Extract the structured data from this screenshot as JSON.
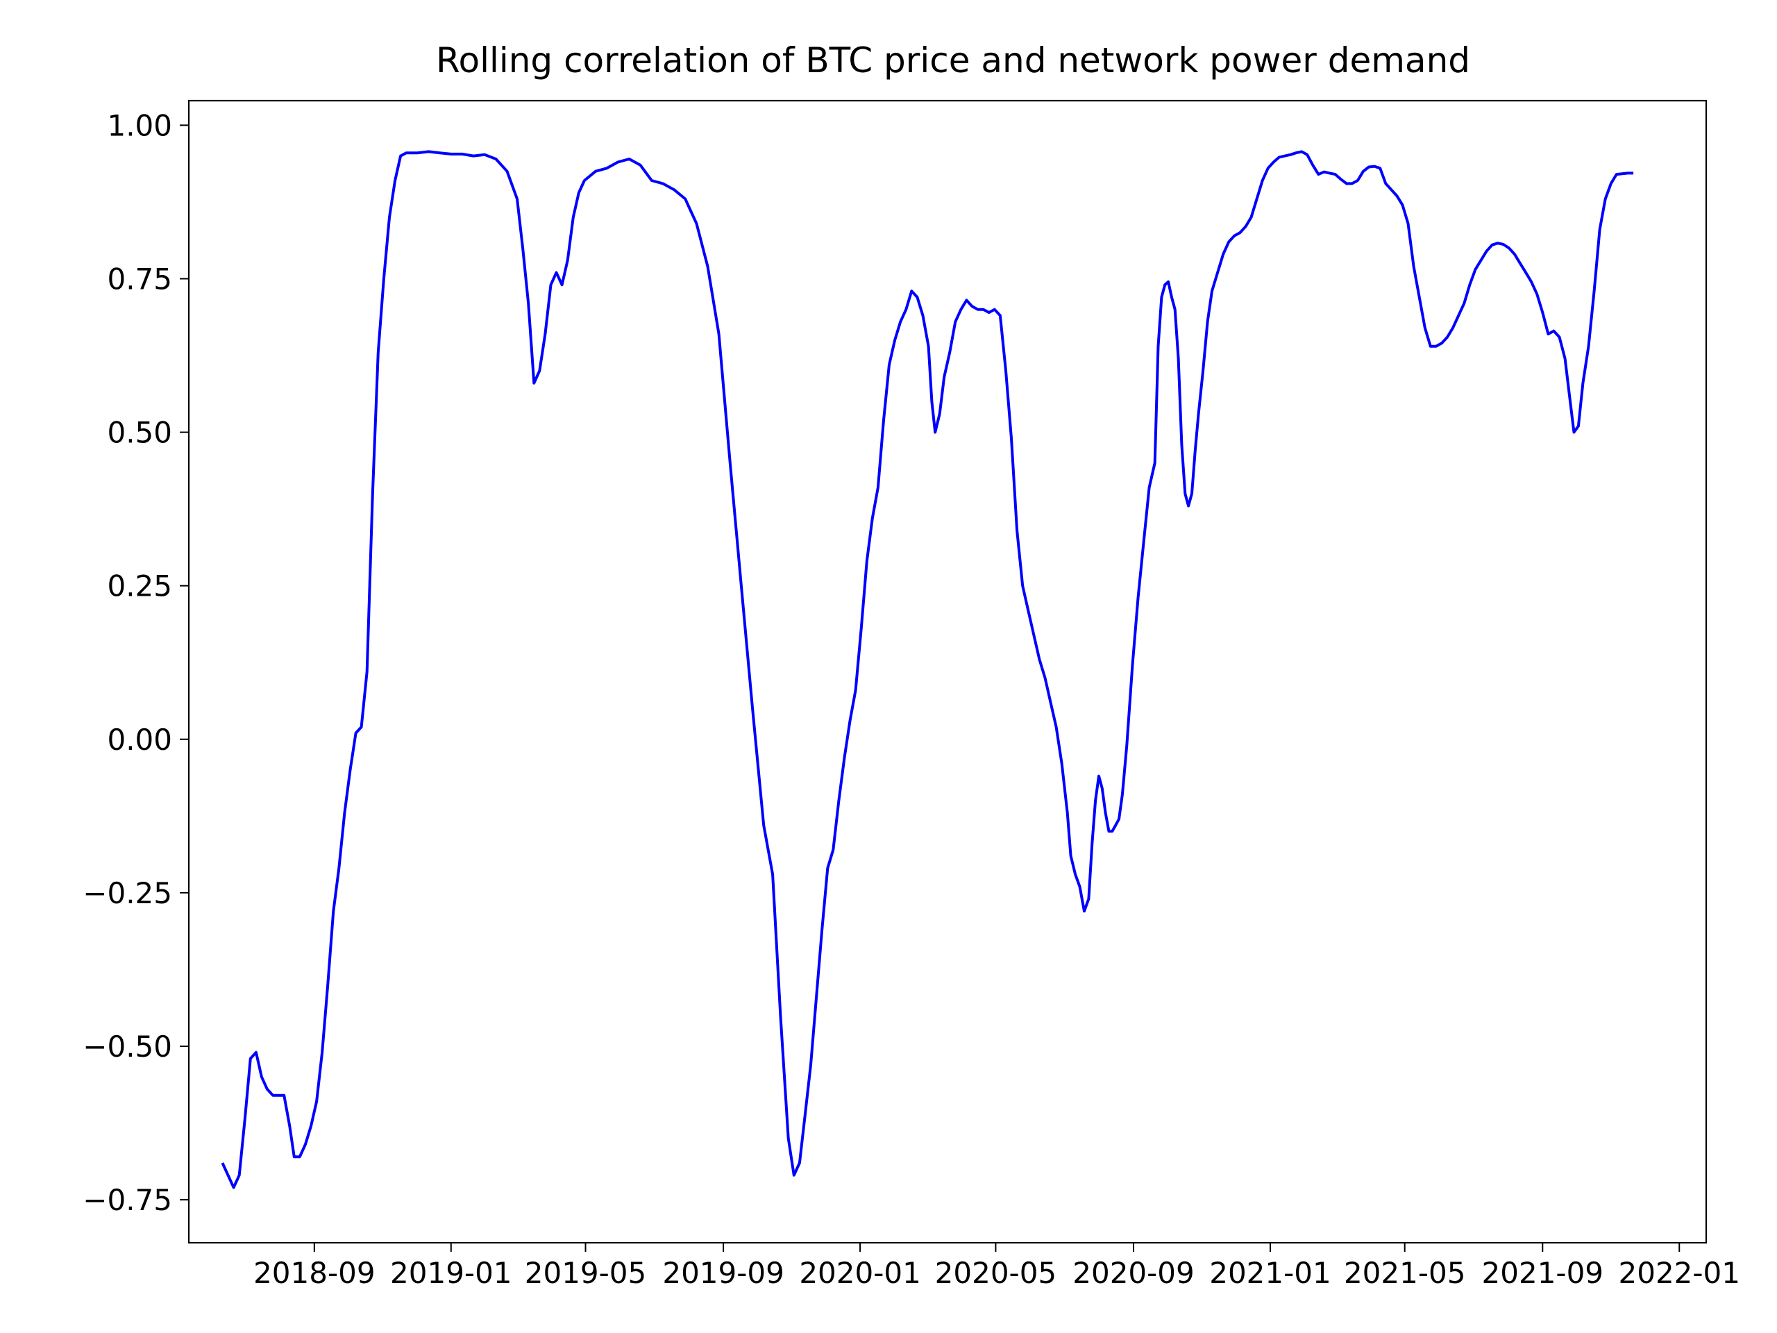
{
  "chart_data": {
    "type": "line",
    "title": "Rolling correlation of BTC price and network power demand",
    "xlabel": "",
    "ylabel": "",
    "x_axis": {
      "type": "date",
      "lim": [
        "2018-05-12",
        "2022-01-25"
      ],
      "ticks": [
        "2018-09-01",
        "2019-01-01",
        "2019-05-01",
        "2019-09-01",
        "2020-01-01",
        "2020-05-01",
        "2020-09-01",
        "2021-01-01",
        "2021-05-01",
        "2021-09-01",
        "2022-01-01"
      ],
      "tick_labels": [
        "2018-09",
        "2019-01",
        "2019-05",
        "2019-09",
        "2020-01",
        "2020-05",
        "2020-09",
        "2021-01",
        "2021-05",
        "2021-09",
        "2022-01"
      ]
    },
    "y_axis": {
      "lim": [
        -0.82,
        1.04
      ],
      "ticks": [
        -0.75,
        -0.5,
        -0.25,
        0.0,
        0.25,
        0.5,
        0.75,
        1.0
      ],
      "tick_labels": [
        "−0.75",
        "−0.50",
        "−0.25",
        "0.00",
        "0.25",
        "0.50",
        "0.75",
        "1.00"
      ]
    },
    "grid": false,
    "legend": "none",
    "series": [
      {
        "color": "#0000ff",
        "points": [
          [
            "2018-06-11",
            -0.69
          ],
          [
            "2018-06-16",
            -0.71
          ],
          [
            "2018-06-21",
            -0.73
          ],
          [
            "2018-06-26",
            -0.71
          ],
          [
            "2018-07-01",
            -0.62
          ],
          [
            "2018-07-06",
            -0.52
          ],
          [
            "2018-07-11",
            -0.51
          ],
          [
            "2018-07-16",
            -0.55
          ],
          [
            "2018-07-21",
            -0.57
          ],
          [
            "2018-07-26",
            -0.58
          ],
          [
            "2018-07-31",
            -0.58
          ],
          [
            "2018-08-05",
            -0.58
          ],
          [
            "2018-08-10",
            -0.63
          ],
          [
            "2018-08-14",
            -0.68
          ],
          [
            "2018-08-19",
            -0.68
          ],
          [
            "2018-08-24",
            -0.66
          ],
          [
            "2018-08-29",
            -0.63
          ],
          [
            "2018-09-03",
            -0.59
          ],
          [
            "2018-09-08",
            -0.51
          ],
          [
            "2018-09-13",
            -0.4
          ],
          [
            "2018-09-18",
            -0.28
          ],
          [
            "2018-09-23",
            -0.21
          ],
          [
            "2018-09-28",
            -0.12
          ],
          [
            "2018-10-03",
            -0.05
          ],
          [
            "2018-10-08",
            0.01
          ],
          [
            "2018-10-13",
            0.02
          ],
          [
            "2018-10-18",
            0.11
          ],
          [
            "2018-10-23",
            0.4
          ],
          [
            "2018-10-28",
            0.63
          ],
          [
            "2018-11-02",
            0.75
          ],
          [
            "2018-11-07",
            0.85
          ],
          [
            "2018-11-12",
            0.91
          ],
          [
            "2018-11-17",
            0.95
          ],
          [
            "2018-11-22",
            0.955
          ],
          [
            "2018-12-02",
            0.955
          ],
          [
            "2018-12-12",
            0.957
          ],
          [
            "2018-12-22",
            0.955
          ],
          [
            "2019-01-01",
            0.953
          ],
          [
            "2019-01-11",
            0.953
          ],
          [
            "2019-01-21",
            0.95
          ],
          [
            "2019-01-31",
            0.952
          ],
          [
            "2019-02-10",
            0.945
          ],
          [
            "2019-02-20",
            0.925
          ],
          [
            "2019-03-01",
            0.88
          ],
          [
            "2019-03-06",
            0.8
          ],
          [
            "2019-03-11",
            0.71
          ],
          [
            "2019-03-16",
            0.58
          ],
          [
            "2019-03-21",
            0.6
          ],
          [
            "2019-03-26",
            0.66
          ],
          [
            "2019-03-31",
            0.74
          ],
          [
            "2019-04-05",
            0.76
          ],
          [
            "2019-04-10",
            0.74
          ],
          [
            "2019-04-15",
            0.78
          ],
          [
            "2019-04-20",
            0.85
          ],
          [
            "2019-04-25",
            0.89
          ],
          [
            "2019-04-30",
            0.91
          ],
          [
            "2019-05-10",
            0.925
          ],
          [
            "2019-05-20",
            0.93
          ],
          [
            "2019-05-30",
            0.94
          ],
          [
            "2019-06-09",
            0.945
          ],
          [
            "2019-06-19",
            0.935
          ],
          [
            "2019-06-29",
            0.91
          ],
          [
            "2019-07-09",
            0.905
          ],
          [
            "2019-07-19",
            0.895
          ],
          [
            "2019-07-29",
            0.88
          ],
          [
            "2019-08-08",
            0.84
          ],
          [
            "2019-08-18",
            0.77
          ],
          [
            "2019-08-28",
            0.66
          ],
          [
            "2019-09-07",
            0.45
          ],
          [
            "2019-09-17",
            0.25
          ],
          [
            "2019-09-27",
            0.05
          ],
          [
            "2019-10-07",
            -0.14
          ],
          [
            "2019-10-15",
            -0.22
          ],
          [
            "2019-10-22",
            -0.45
          ],
          [
            "2019-10-29",
            -0.65
          ],
          [
            "2019-11-03",
            -0.71
          ],
          [
            "2019-11-08",
            -0.69
          ],
          [
            "2019-11-13",
            -0.61
          ],
          [
            "2019-11-18",
            -0.53
          ],
          [
            "2019-11-23",
            -0.42
          ],
          [
            "2019-11-28",
            -0.31
          ],
          [
            "2019-12-03",
            -0.21
          ],
          [
            "2019-12-08",
            -0.18
          ],
          [
            "2019-12-13",
            -0.1
          ],
          [
            "2019-12-18",
            -0.03
          ],
          [
            "2019-12-23",
            0.03
          ],
          [
            "2019-12-28",
            0.08
          ],
          [
            "2020-01-02",
            0.18
          ],
          [
            "2020-01-07",
            0.29
          ],
          [
            "2020-01-12",
            0.36
          ],
          [
            "2020-01-17",
            0.41
          ],
          [
            "2020-01-22",
            0.52
          ],
          [
            "2020-01-27",
            0.61
          ],
          [
            "2020-02-01",
            0.65
          ],
          [
            "2020-02-06",
            0.68
          ],
          [
            "2020-02-11",
            0.7
          ],
          [
            "2020-02-16",
            0.73
          ],
          [
            "2020-02-21",
            0.72
          ],
          [
            "2020-02-26",
            0.69
          ],
          [
            "2020-03-02",
            0.64
          ],
          [
            "2020-03-05",
            0.55
          ],
          [
            "2020-03-08",
            0.5
          ],
          [
            "2020-03-12",
            0.53
          ],
          [
            "2020-03-16",
            0.59
          ],
          [
            "2020-03-21",
            0.63
          ],
          [
            "2020-03-26",
            0.68
          ],
          [
            "2020-03-31",
            0.7
          ],
          [
            "2020-04-05",
            0.715
          ],
          [
            "2020-04-10",
            0.705
          ],
          [
            "2020-04-15",
            0.7
          ],
          [
            "2020-04-20",
            0.7
          ],
          [
            "2020-04-25",
            0.695
          ],
          [
            "2020-04-30",
            0.7
          ],
          [
            "2020-05-05",
            0.69
          ],
          [
            "2020-05-10",
            0.6
          ],
          [
            "2020-05-15",
            0.49
          ],
          [
            "2020-05-20",
            0.34
          ],
          [
            "2020-05-25",
            0.25
          ],
          [
            "2020-05-30",
            0.21
          ],
          [
            "2020-06-04",
            0.17
          ],
          [
            "2020-06-09",
            0.13
          ],
          [
            "2020-06-14",
            0.1
          ],
          [
            "2020-06-19",
            0.06
          ],
          [
            "2020-06-24",
            0.02
          ],
          [
            "2020-06-29",
            -0.04
          ],
          [
            "2020-07-04",
            -0.12
          ],
          [
            "2020-07-07",
            -0.19
          ],
          [
            "2020-07-11",
            -0.22
          ],
          [
            "2020-07-15",
            -0.24
          ],
          [
            "2020-07-19",
            -0.28
          ],
          [
            "2020-07-23",
            -0.26
          ],
          [
            "2020-07-26",
            -0.17
          ],
          [
            "2020-07-29",
            -0.1
          ],
          [
            "2020-08-01",
            -0.06
          ],
          [
            "2020-08-04",
            -0.08
          ],
          [
            "2020-08-07",
            -0.12
          ],
          [
            "2020-08-10",
            -0.15
          ],
          [
            "2020-08-13",
            -0.15
          ],
          [
            "2020-08-16",
            -0.14
          ],
          [
            "2020-08-19",
            -0.13
          ],
          [
            "2020-08-22",
            -0.09
          ],
          [
            "2020-08-26",
            -0.01
          ],
          [
            "2020-08-31",
            0.12
          ],
          [
            "2020-09-05",
            0.23
          ],
          [
            "2020-09-10",
            0.32
          ],
          [
            "2020-09-15",
            0.41
          ],
          [
            "2020-09-20",
            0.45
          ],
          [
            "2020-09-23",
            0.64
          ],
          [
            "2020-09-26",
            0.72
          ],
          [
            "2020-09-29",
            0.74
          ],
          [
            "2020-10-02",
            0.745
          ],
          [
            "2020-10-05",
            0.72
          ],
          [
            "2020-10-08",
            0.7
          ],
          [
            "2020-10-11",
            0.62
          ],
          [
            "2020-10-14",
            0.48
          ],
          [
            "2020-10-17",
            0.4
          ],
          [
            "2020-10-20",
            0.38
          ],
          [
            "2020-10-23",
            0.4
          ],
          [
            "2020-10-26",
            0.47
          ],
          [
            "2020-10-29",
            0.53
          ],
          [
            "2020-11-02",
            0.6
          ],
          [
            "2020-11-06",
            0.68
          ],
          [
            "2020-11-10",
            0.73
          ],
          [
            "2020-11-15",
            0.76
          ],
          [
            "2020-11-20",
            0.79
          ],
          [
            "2020-11-25",
            0.81
          ],
          [
            "2020-11-30",
            0.82
          ],
          [
            "2020-12-05",
            0.825
          ],
          [
            "2020-12-10",
            0.835
          ],
          [
            "2020-12-15",
            0.85
          ],
          [
            "2020-12-20",
            0.88
          ],
          [
            "2020-12-25",
            0.91
          ],
          [
            "2020-12-30",
            0.93
          ],
          [
            "2021-01-04",
            0.94
          ],
          [
            "2021-01-09",
            0.948
          ],
          [
            "2021-01-14",
            0.95
          ],
          [
            "2021-01-19",
            0.952
          ],
          [
            "2021-01-24",
            0.955
          ],
          [
            "2021-01-29",
            0.957
          ],
          [
            "2021-02-03",
            0.952
          ],
          [
            "2021-02-08",
            0.935
          ],
          [
            "2021-02-13",
            0.92
          ],
          [
            "2021-02-18",
            0.924
          ],
          [
            "2021-02-23",
            0.922
          ],
          [
            "2021-02-28",
            0.92
          ],
          [
            "2021-03-05",
            0.912
          ],
          [
            "2021-03-10",
            0.905
          ],
          [
            "2021-03-15",
            0.905
          ],
          [
            "2021-03-20",
            0.91
          ],
          [
            "2021-03-25",
            0.925
          ],
          [
            "2021-03-30",
            0.932
          ],
          [
            "2021-04-04",
            0.933
          ],
          [
            "2021-04-09",
            0.93
          ],
          [
            "2021-04-14",
            0.905
          ],
          [
            "2021-04-19",
            0.895
          ],
          [
            "2021-04-24",
            0.885
          ],
          [
            "2021-04-29",
            0.87
          ],
          [
            "2021-05-04",
            0.84
          ],
          [
            "2021-05-09",
            0.77
          ],
          [
            "2021-05-14",
            0.72
          ],
          [
            "2021-05-19",
            0.67
          ],
          [
            "2021-05-24",
            0.64
          ],
          [
            "2021-05-29",
            0.64
          ],
          [
            "2021-06-03",
            0.645
          ],
          [
            "2021-06-08",
            0.655
          ],
          [
            "2021-06-13",
            0.67
          ],
          [
            "2021-06-18",
            0.69
          ],
          [
            "2021-06-23",
            0.71
          ],
          [
            "2021-06-28",
            0.74
          ],
          [
            "2021-07-03",
            0.765
          ],
          [
            "2021-07-08",
            0.78
          ],
          [
            "2021-07-13",
            0.795
          ],
          [
            "2021-07-18",
            0.805
          ],
          [
            "2021-07-23",
            0.808
          ],
          [
            "2021-07-28",
            0.806
          ],
          [
            "2021-08-02",
            0.8
          ],
          [
            "2021-08-07",
            0.79
          ],
          [
            "2021-08-12",
            0.775
          ],
          [
            "2021-08-17",
            0.76
          ],
          [
            "2021-08-22",
            0.745
          ],
          [
            "2021-08-27",
            0.725
          ],
          [
            "2021-09-01",
            0.695
          ],
          [
            "2021-09-06",
            0.66
          ],
          [
            "2021-09-11",
            0.665
          ],
          [
            "2021-09-16",
            0.655
          ],
          [
            "2021-09-21",
            0.62
          ],
          [
            "2021-09-25",
            0.56
          ],
          [
            "2021-09-29",
            0.5
          ],
          [
            "2021-10-03",
            0.51
          ],
          [
            "2021-10-07",
            0.58
          ],
          [
            "2021-10-12",
            0.64
          ],
          [
            "2021-10-17",
            0.73
          ],
          [
            "2021-10-22",
            0.83
          ],
          [
            "2021-10-27",
            0.88
          ],
          [
            "2021-11-01",
            0.905
          ],
          [
            "2021-11-06",
            0.92
          ],
          [
            "2021-11-16",
            0.922
          ],
          [
            "2021-11-21",
            0.922
          ]
        ]
      }
    ]
  }
}
